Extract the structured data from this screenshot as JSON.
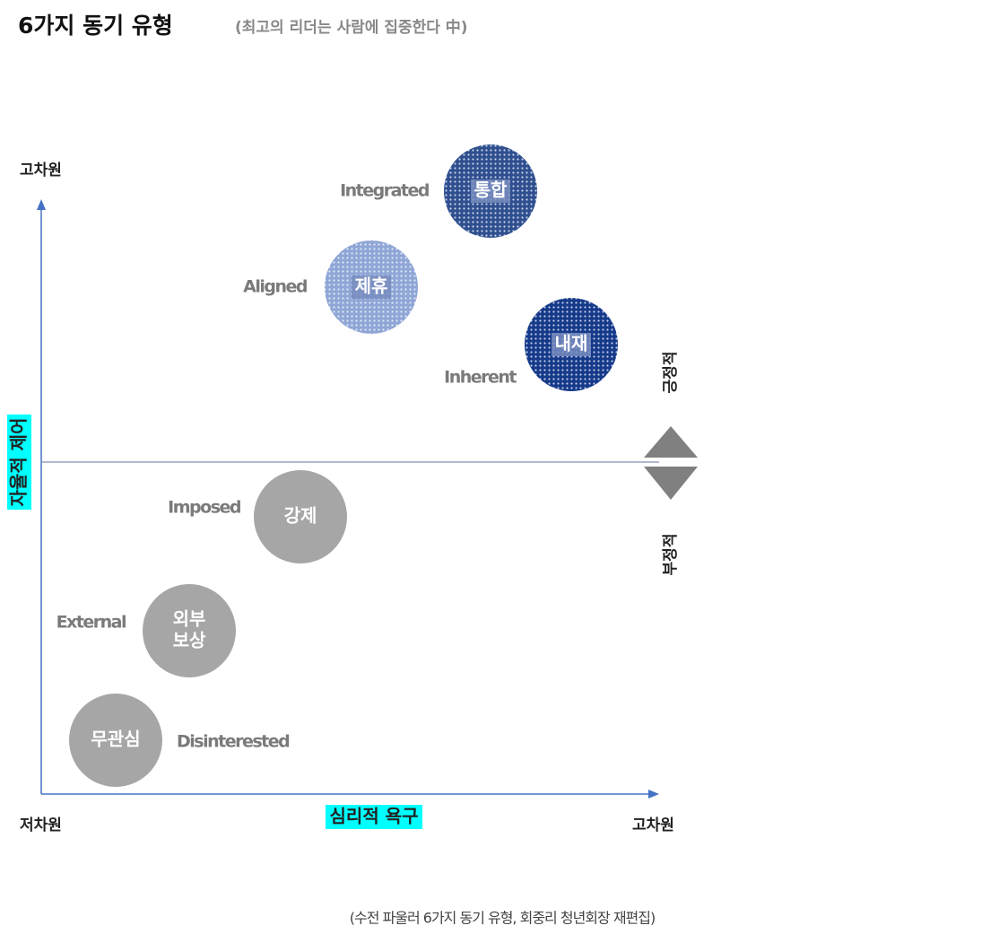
{
  "header": {
    "title": "6가지 동기 유형",
    "subtitle": "(최고의 리더는 사람에 집중한다 中)"
  },
  "axes": {
    "y_top": "고차원",
    "origin": "저차원",
    "x_right": "고차원",
    "x_title": "심리적 욕구",
    "y_title": "자율적 제어",
    "positive": "긍정적",
    "negative": "부정적"
  },
  "nodes": [
    {
      "label": "통합",
      "english": "Integrated"
    },
    {
      "label": "제휴",
      "english": "Aligned"
    },
    {
      "label": "내재",
      "english": "Inherent"
    },
    {
      "label": "강제",
      "english": "Imposed"
    },
    {
      "label": [
        "외부",
        "보상"
      ],
      "english": "External"
    },
    {
      "label": "무관심",
      "english": "Disinterested"
    }
  ],
  "source": "(수전 파울러 6가지 동기 유형, 회중리 청년회장 재편집)"
}
